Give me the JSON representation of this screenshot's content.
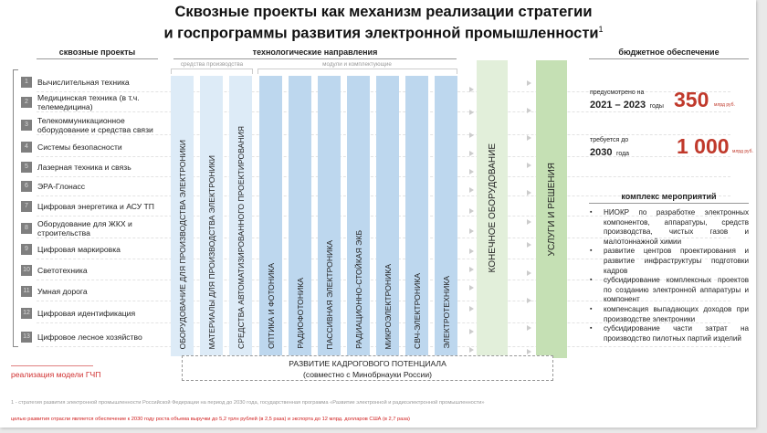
{
  "title": {
    "line1": "Сквозные проекты как механизм реализации стратегии",
    "line2": "и госпрограммы развития электронной промышленности",
    "footnote_mark": "1"
  },
  "projects": {
    "header": "сквозные проекты",
    "items": [
      {
        "num": "1",
        "label": "Вычислительная техника"
      },
      {
        "num": "2",
        "label": "Медицинская техника (в т.ч. телемедицина)"
      },
      {
        "num": "3",
        "label": "Телекоммуникационное оборудование и средства связи"
      },
      {
        "num": "4",
        "label": "Системы безопасности"
      },
      {
        "num": "5",
        "label": "Лазерная техника и связь"
      },
      {
        "num": "6",
        "label": "ЭРА-Глонасс"
      },
      {
        "num": "7",
        "label": "Цифровая энергетика и АСУ ТП"
      },
      {
        "num": "8",
        "label": "Оборудование для ЖКХ и строительства"
      },
      {
        "num": "9",
        "label": "Цифровая маркировка"
      },
      {
        "num": "10",
        "label": "Светотехника"
      },
      {
        "num": "11",
        "label": "Умная дорога"
      },
      {
        "num": "12",
        "label": "Цифровая идентификация"
      },
      {
        "num": "13",
        "label": "Цифровое лесное хозяйство"
      }
    ]
  },
  "tech": {
    "header": "технологические направления",
    "group1": "средства производства",
    "group2": "модули и комплектующие",
    "columns": [
      "ОБОРУДОВАНИЕ ДЛЯ ПРОИЗВОДСТВА ЭЛЕКТРОНИКИ",
      "МАТЕРИАЛЫ ДЛЯ ПРОИЗВОДСТВА ЭЛЕКТРОНИКИ",
      "СРЕДСТВА АВТОМАТИЗИРОВАННОГО ПРОЕКТИРОВАНИЯ",
      "ОПТИКА И ФОТОНИКА",
      "РАДИОФОТОНИКА",
      "ПАССИВНАЯ ЭЛЕКТРОНИКА",
      "РАДИАЦИОННО-СТОЙКАЯ ЭКБ",
      "МИКРОЭЛЕКТРОНИКА",
      "СВЧ-ЭЛЕКТРОНИКА",
      "ЭЛЕКТРОТЕХНИКА"
    ]
  },
  "end_equipment": "КОНЕЧНОЕ ОБОРУДОВАНИЕ",
  "services": "УСЛУГИ И РЕШЕНИЯ",
  "kadr": {
    "line1": "РАЗВИТИЕ КАДРОГОВОГО ПОТЕНЦИАЛА",
    "line2": "(совместно с Минобрнауки России)"
  },
  "ppp": "реализация модели ГЧП",
  "budget": {
    "header": "бюджетное обеспечение",
    "planned_label": "предусмотрено на",
    "planned_years": "2021 – 2023",
    "planned_years_suffix": "годы",
    "planned_value": "350",
    "planned_unit": "млрд руб.",
    "required_label": "требуется до",
    "required_year": "2030",
    "required_year_suffix": "года",
    "required_value": "1 000",
    "required_unit": "млрд руб."
  },
  "measures": {
    "header": "комплекс мероприятий",
    "items": [
      "НИОКР по разработке электронных компонентов, аппаратуры, средств производства, чистых газов и малотоннажной химии",
      "развитие центров проектирования и развитие инфраструктуры подготовки кадров",
      "субсидирование комплексных проектов по созданию электронной аппаратуры и компонент",
      "компенсация выпадающих доходов при производстве электроники",
      "субсидирование части затрат на производство пилотных партий изделий"
    ]
  },
  "footnotes": {
    "note1": "1 - стратегия развития электронной промышленности Российской Федерации на период до 2030 года, государственная программа «Развитие электронной и радиоэлектронной промышленности»",
    "goal": "целью развития отрасли является обеспечение к 2030 году роста объема выручки до 5,2 трлн рублей (в 2,5 раза) и экспорта до 12 млрд. долларов США (в 2,7 раза)"
  },
  "colors": {
    "accent_red": "#c0392b",
    "light_blue": "#ddebf7",
    "blue": "#bdd7ee",
    "light_green": "#e2efda",
    "green": "#c5e0b4"
  }
}
